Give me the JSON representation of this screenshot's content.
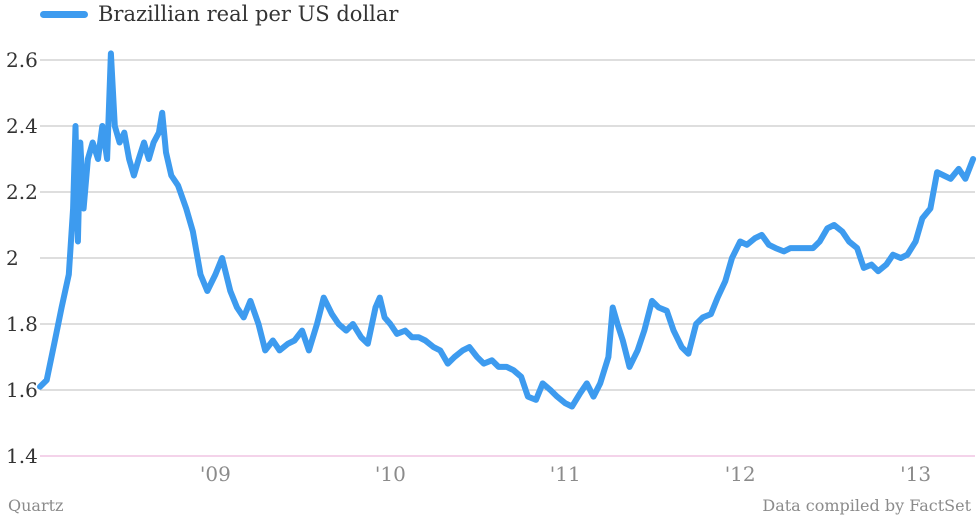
{
  "chart_data": {
    "type": "line",
    "legend": "Brazillian real per US dollar",
    "series": [
      {
        "name": "Brazillian real per US dollar",
        "color": "#3d9bef",
        "points": [
          [
            "2008-01-01",
            1.61
          ],
          [
            "2008-01-15",
            1.63
          ],
          [
            "2008-02-01",
            1.75
          ],
          [
            "2008-02-15",
            1.85
          ],
          [
            "2008-03-01",
            1.95
          ],
          [
            "2008-03-10",
            2.15
          ],
          [
            "2008-03-15",
            2.4
          ],
          [
            "2008-03-20",
            2.05
          ],
          [
            "2008-03-25",
            2.35
          ],
          [
            "2008-04-01",
            2.15
          ],
          [
            "2008-04-10",
            2.3
          ],
          [
            "2008-04-20",
            2.35
          ],
          [
            "2008-05-01",
            2.3
          ],
          [
            "2008-05-10",
            2.4
          ],
          [
            "2008-05-20",
            2.3
          ],
          [
            "2008-05-28",
            2.62
          ],
          [
            "2008-06-05",
            2.4
          ],
          [
            "2008-06-15",
            2.35
          ],
          [
            "2008-06-25",
            2.38
          ],
          [
            "2008-07-05",
            2.3
          ],
          [
            "2008-07-15",
            2.25
          ],
          [
            "2008-07-25",
            2.3
          ],
          [
            "2008-08-05",
            2.35
          ],
          [
            "2008-08-15",
            2.3
          ],
          [
            "2008-08-25",
            2.35
          ],
          [
            "2008-09-05",
            2.38
          ],
          [
            "2008-09-12",
            2.44
          ],
          [
            "2008-09-20",
            2.32
          ],
          [
            "2008-10-01",
            2.25
          ],
          [
            "2008-10-15",
            2.22
          ],
          [
            "2008-11-01",
            2.15
          ],
          [
            "2008-11-15",
            2.08
          ],
          [
            "2008-12-01",
            1.95
          ],
          [
            "2008-12-15",
            1.9
          ],
          [
            "2009-01-01",
            1.95
          ],
          [
            "2009-01-15",
            2.0
          ],
          [
            "2009-02-01",
            1.9
          ],
          [
            "2009-02-15",
            1.85
          ],
          [
            "2009-03-01",
            1.82
          ],
          [
            "2009-03-15",
            1.87
          ],
          [
            "2009-04-01",
            1.8
          ],
          [
            "2009-04-15",
            1.72
          ],
          [
            "2009-05-01",
            1.75
          ],
          [
            "2009-05-15",
            1.72
          ],
          [
            "2009-06-01",
            1.74
          ],
          [
            "2009-06-15",
            1.75
          ],
          [
            "2009-07-01",
            1.78
          ],
          [
            "2009-07-15",
            1.72
          ],
          [
            "2009-08-01",
            1.8
          ],
          [
            "2009-08-15",
            1.88
          ],
          [
            "2009-09-01",
            1.83
          ],
          [
            "2009-09-15",
            1.8
          ],
          [
            "2009-10-01",
            1.78
          ],
          [
            "2009-10-15",
            1.8
          ],
          [
            "2009-11-01",
            1.76
          ],
          [
            "2009-11-15",
            1.74
          ],
          [
            "2009-12-01",
            1.85
          ],
          [
            "2009-12-10",
            1.88
          ],
          [
            "2009-12-20",
            1.82
          ],
          [
            "2010-01-01",
            1.8
          ],
          [
            "2010-01-15",
            1.77
          ],
          [
            "2010-02-01",
            1.78
          ],
          [
            "2010-02-15",
            1.76
          ],
          [
            "2010-03-01",
            1.76
          ],
          [
            "2010-03-15",
            1.75
          ],
          [
            "2010-04-01",
            1.73
          ],
          [
            "2010-04-15",
            1.72
          ],
          [
            "2010-05-01",
            1.68
          ],
          [
            "2010-05-15",
            1.7
          ],
          [
            "2010-06-01",
            1.72
          ],
          [
            "2010-06-15",
            1.73
          ],
          [
            "2010-07-01",
            1.7
          ],
          [
            "2010-07-15",
            1.68
          ],
          [
            "2010-08-01",
            1.69
          ],
          [
            "2010-08-15",
            1.67
          ],
          [
            "2010-09-01",
            1.67
          ],
          [
            "2010-09-15",
            1.66
          ],
          [
            "2010-10-01",
            1.64
          ],
          [
            "2010-10-15",
            1.58
          ],
          [
            "2010-11-01",
            1.57
          ],
          [
            "2010-11-15",
            1.62
          ],
          [
            "2010-12-01",
            1.6
          ],
          [
            "2010-12-15",
            1.58
          ],
          [
            "2011-01-01",
            1.56
          ],
          [
            "2011-01-15",
            1.55
          ],
          [
            "2011-02-01",
            1.59
          ],
          [
            "2011-02-15",
            1.62
          ],
          [
            "2011-03-01",
            1.58
          ],
          [
            "2011-03-15",
            1.62
          ],
          [
            "2011-04-01",
            1.7
          ],
          [
            "2011-04-10",
            1.85
          ],
          [
            "2011-04-20",
            1.8
          ],
          [
            "2011-05-01",
            1.75
          ],
          [
            "2011-05-15",
            1.67
          ],
          [
            "2011-06-01",
            1.72
          ],
          [
            "2011-06-15",
            1.78
          ],
          [
            "2011-07-01",
            1.87
          ],
          [
            "2011-07-15",
            1.85
          ],
          [
            "2011-08-01",
            1.84
          ],
          [
            "2011-08-15",
            1.78
          ],
          [
            "2011-09-01",
            1.73
          ],
          [
            "2011-09-15",
            1.71
          ],
          [
            "2011-10-01",
            1.8
          ],
          [
            "2011-10-15",
            1.82
          ],
          [
            "2011-11-01",
            1.83
          ],
          [
            "2011-11-15",
            1.88
          ],
          [
            "2011-12-01",
            1.93
          ],
          [
            "2011-12-15",
            2.0
          ],
          [
            "2012-01-01",
            2.05
          ],
          [
            "2012-01-15",
            2.04
          ],
          [
            "2012-02-01",
            2.06
          ],
          [
            "2012-02-15",
            2.07
          ],
          [
            "2012-03-01",
            2.04
          ],
          [
            "2012-03-15",
            2.03
          ],
          [
            "2012-04-01",
            2.02
          ],
          [
            "2012-04-15",
            2.03
          ],
          [
            "2012-05-01",
            2.03
          ],
          [
            "2012-05-15",
            2.03
          ],
          [
            "2012-06-01",
            2.03
          ],
          [
            "2012-06-15",
            2.05
          ],
          [
            "2012-07-01",
            2.09
          ],
          [
            "2012-07-15",
            2.1
          ],
          [
            "2012-08-01",
            2.08
          ],
          [
            "2012-08-15",
            2.05
          ],
          [
            "2012-09-01",
            2.03
          ],
          [
            "2012-09-15",
            1.97
          ],
          [
            "2012-10-01",
            1.98
          ],
          [
            "2012-10-15",
            1.96
          ],
          [
            "2012-11-01",
            1.98
          ],
          [
            "2012-11-15",
            2.01
          ],
          [
            "2012-12-01",
            2.0
          ],
          [
            "2012-12-15",
            2.01
          ],
          [
            "2013-01-01",
            2.05
          ],
          [
            "2013-01-15",
            2.12
          ],
          [
            "2013-02-01",
            2.15
          ],
          [
            "2013-02-15",
            2.26
          ],
          [
            "2013-03-01",
            2.25
          ],
          [
            "2013-03-15",
            2.24
          ],
          [
            "2013-04-01",
            2.27
          ],
          [
            "2013-04-15",
            2.24
          ],
          [
            "2013-05-01",
            2.3
          ]
        ]
      }
    ],
    "y_axis": {
      "min": 1.4,
      "max": 2.6,
      "ticks": [
        1.4,
        1.6,
        1.8,
        2,
        2.2,
        2.4,
        2.6
      ]
    },
    "x_axis": {
      "min": "2008-01-01",
      "max": "2013-05-05",
      "ticks": [
        {
          "date": "2009-01-01",
          "label": "'09"
        },
        {
          "date": "2010-01-01",
          "label": "'10"
        },
        {
          "date": "2011-01-01",
          "label": "'11"
        },
        {
          "date": "2012-01-01",
          "label": "'12"
        },
        {
          "date": "2013-01-01",
          "label": "'13"
        }
      ]
    },
    "grid": true,
    "baseline_color": "#e9a7d6",
    "grid_color": "#bdbdbd"
  },
  "footer": {
    "source": "Quartz",
    "credit": "Data compiled by FactSet"
  }
}
